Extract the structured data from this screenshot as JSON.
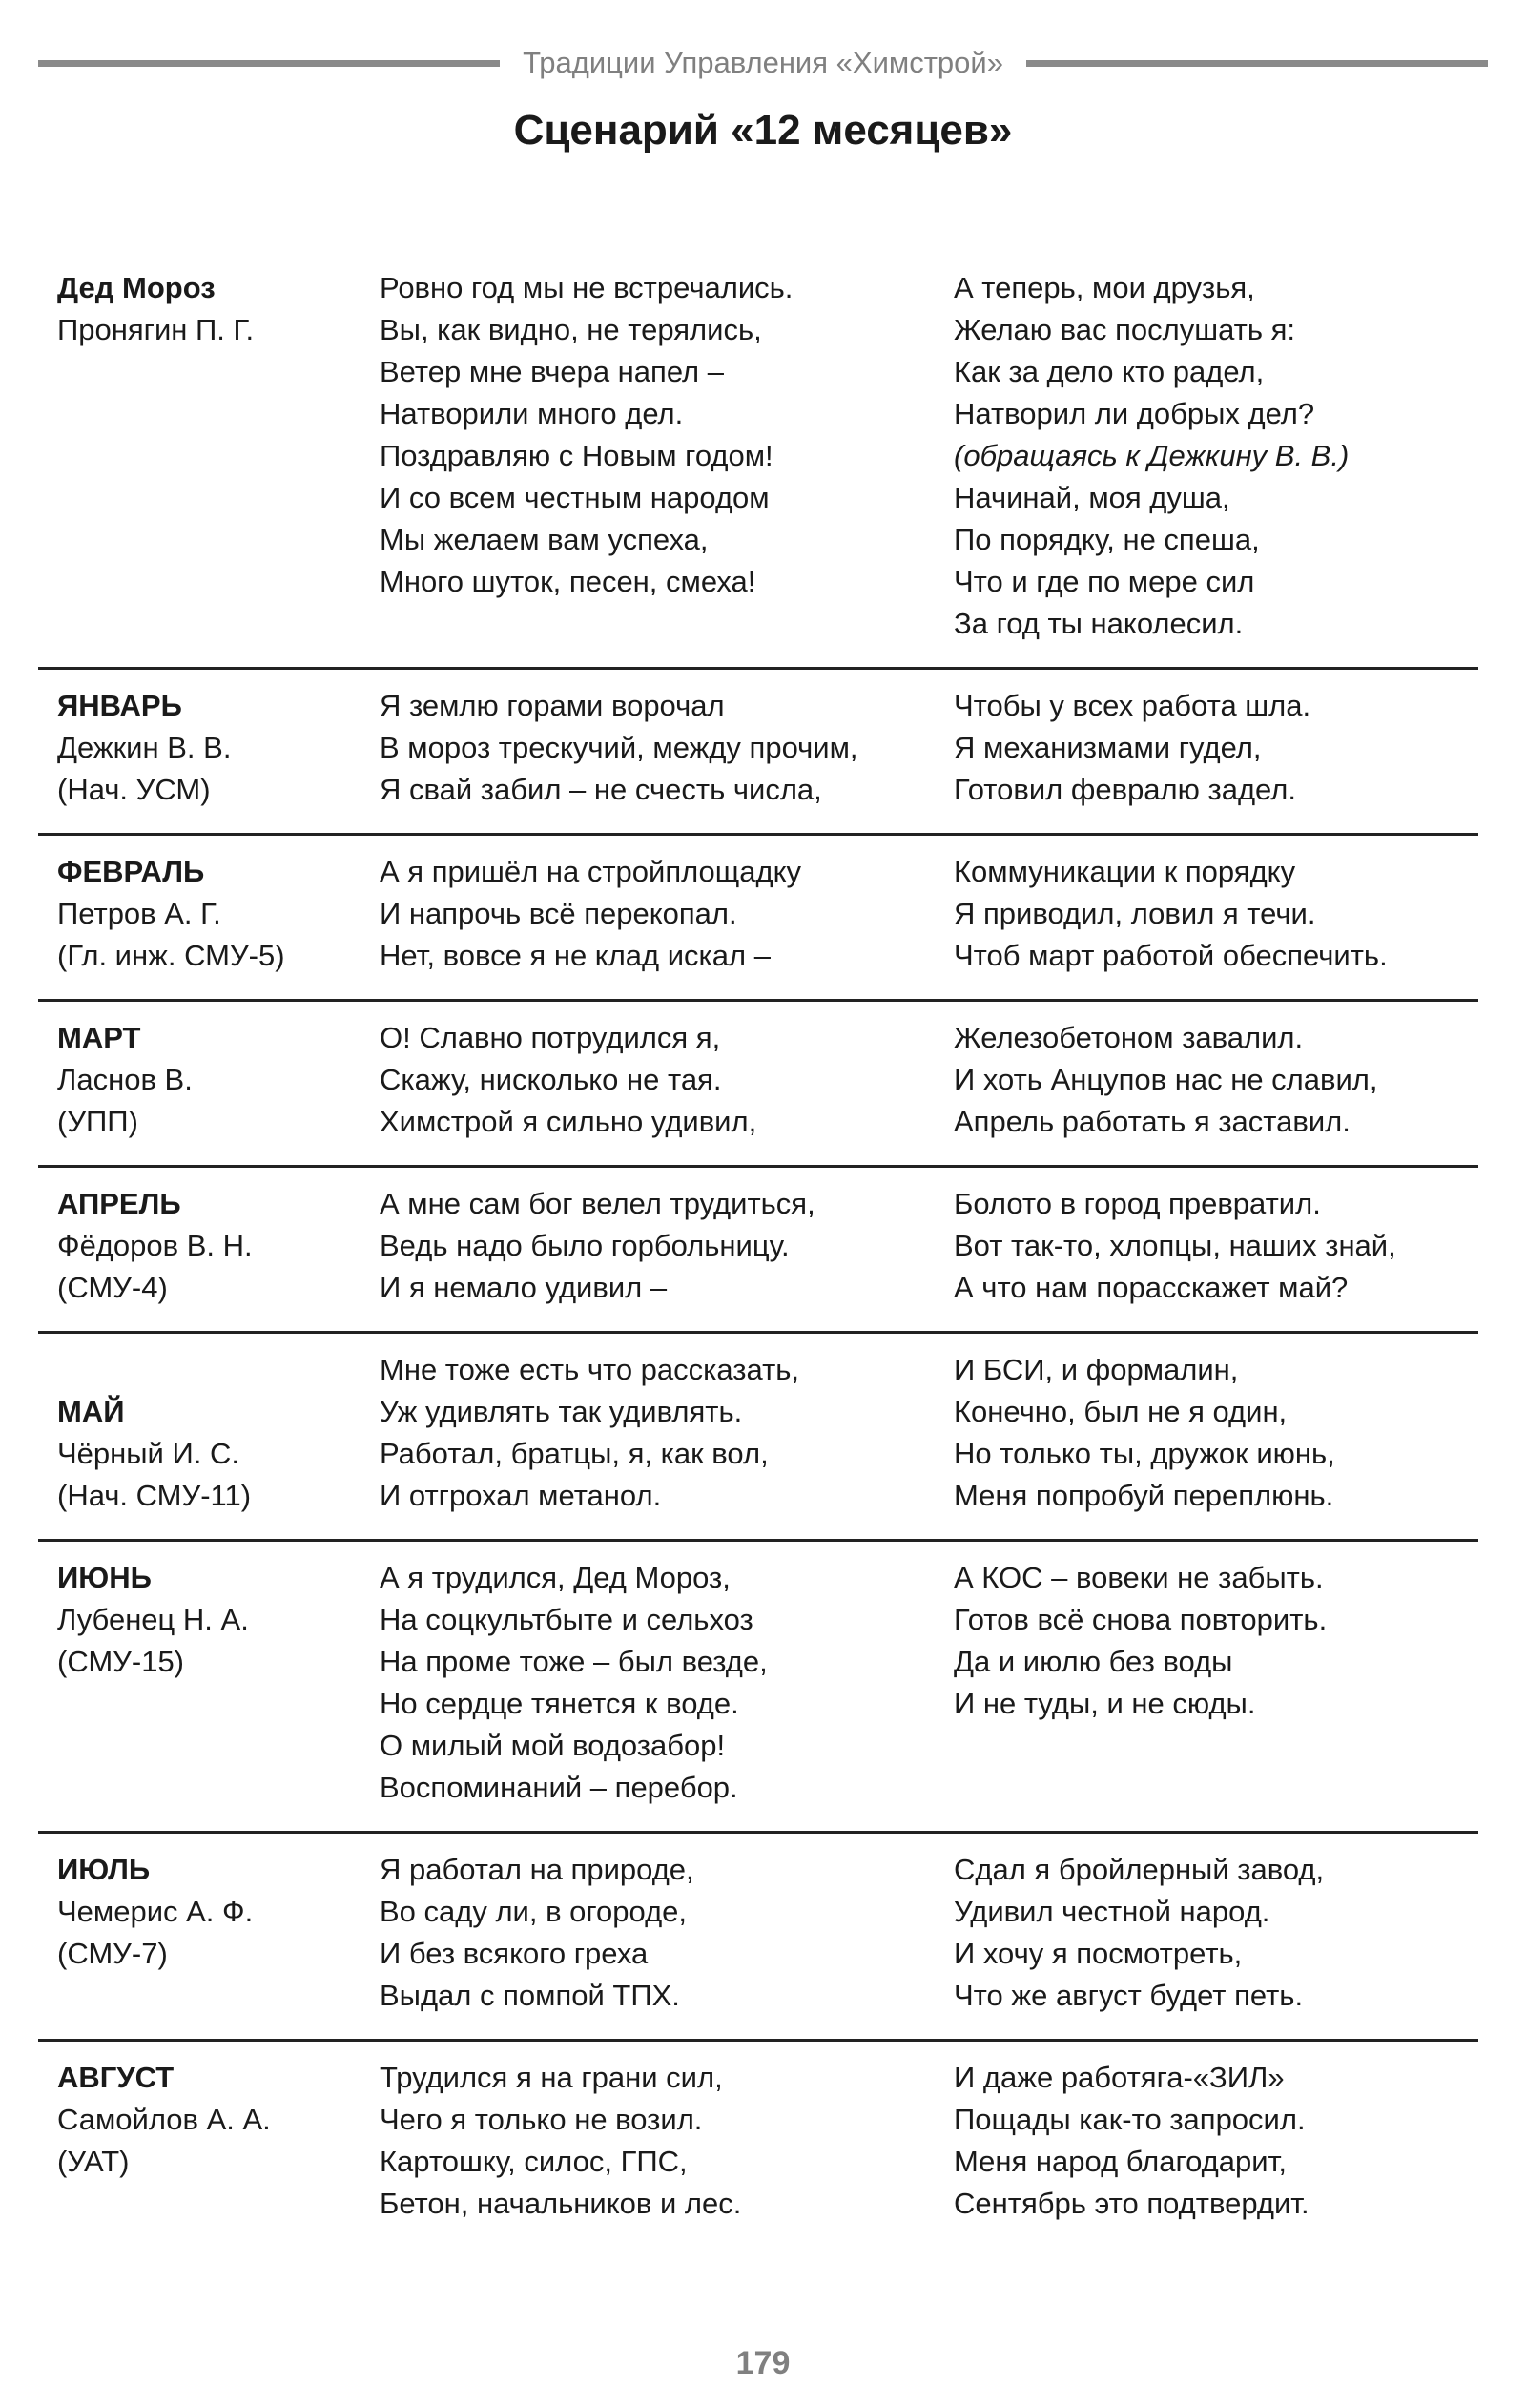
{
  "running_header": "Традиции Управления «Химстрой»",
  "title": "Сценарий «12 месяцев»",
  "rows": [
    {
      "name": [
        "Дед Мороз",
        "Пронягин П. Г."
      ],
      "col2": [
        "Ровно год мы не встречались.",
        "Вы, как видно, не терялись,",
        "Ветер мне вчера напел –",
        "Натворили много дел.",
        "Поздравляю с Новым годом!",
        "И со всем честным народом",
        "Мы желаем вам успеха,",
        "Много шуток, песен, смеха!"
      ],
      "col3": [
        "А теперь, мои друзья,",
        "Желаю вас послушать я:",
        "Как за дело кто радел,",
        "Натворил ли добрых дел?",
        "(обращаясь к Дежкину В. В.)",
        "Начинай, моя душа,",
        "По порядку, не спеша,",
        "Что и где по мере сил",
        "За год ты наколесил."
      ]
    },
    {
      "name": [
        "ЯНВАРЬ",
        "Дежкин В. В.",
        "(Нач. УСМ)"
      ],
      "col2": [
        "Я землю горами ворочал",
        "В мороз трескучий, между прочим,",
        "Я свай забил – не счесть числа,"
      ],
      "col3": [
        "Чтобы у всех работа шла.",
        "Я механизмами гудел,",
        "Готовил февралю задел."
      ]
    },
    {
      "name": [
        "ФЕВРАЛЬ",
        "Петров А. Г.",
        "(Гл. инж. СМУ-5)"
      ],
      "col2": [
        "А я пришёл на стройплощадку",
        "И напрочь всё перекопал.",
        "Нет, вовсе я не клад искал –"
      ],
      "col3": [
        "Коммуникации к порядку",
        "Я приводил, ловил я течи.",
        "Чтоб март работой обеспечить."
      ]
    },
    {
      "name": [
        "МАРТ",
        "Ласнов В.",
        "(УПП)"
      ],
      "col2": [
        "О! Славно потрудился я,",
        "Скажу, нисколько не тая.",
        "Химстрой я сильно удивил,"
      ],
      "col3": [
        "Железобетоном завалил.",
        "И хоть Анцупов нас не славил,",
        "Апрель работать я заставил."
      ]
    },
    {
      "name": [
        "АПРЕЛЬ",
        "Фёдоров В. Н.",
        "(СМУ-4)"
      ],
      "col2": [
        "А мне сам бог велел трудиться,",
        "Ведь надо было горбольницу.",
        "И я немало удивил –"
      ],
      "col3": [
        "Болото в город превратил.",
        "Вот так-то, хлопцы, наших знай,",
        "А что нам порасскажет май?"
      ]
    },
    {
      "name": [
        "",
        "МАЙ",
        "Чёрный И. С.",
        "(Нач. СМУ-11)"
      ],
      "col2": [
        "Мне тоже есть что рассказать,",
        "Уж удивлять так удивлять.",
        "Работал, братцы, я, как вол,",
        "И отгрохал метанол."
      ],
      "col3": [
        "И БСИ, и формалин,",
        "Конечно, был не я один,",
        "Но только ты, дружок июнь,",
        "Меня попробуй переплюнь."
      ]
    },
    {
      "name": [
        "ИЮНЬ",
        "Лубенец Н. А.",
        "(СМУ-15)"
      ],
      "col2": [
        "А я трудился, Дед Мороз,",
        "На соцкультбыте и сельхоз",
        "На проме тоже – был везде,",
        "Но сердце тянется к воде.",
        "О милый мой водозабор!",
        "Воспоминаний – перебор."
      ],
      "col3": [
        "А КОС – вовеки не забыть.",
        "Готов всё снова повторить.",
        "Да и июлю без воды",
        "И не туды, и не сюды."
      ]
    },
    {
      "name": [
        "ИЮЛЬ",
        "Чемерис А. Ф.",
        "(СМУ-7)"
      ],
      "col2": [
        "Я работал на природе,",
        "Во саду ли, в огороде,",
        "И без всякого греха",
        "Выдал с помпой ТПХ."
      ],
      "col3": [
        "Сдал я бройлерный завод,",
        "Удивил честной народ.",
        "И хочу я посмотреть,",
        "Что же август будет петь."
      ]
    },
    {
      "name": [
        "АВГУСТ",
        "Самойлов А. А.",
        "(УАТ)"
      ],
      "col2": [
        "Трудился я на грани сил,",
        "Чего я только не возил.",
        "Картошку, силос, ГПС,",
        "Бетон, начальников и лес."
      ],
      "col3": [
        "И даже работяга-«ЗИЛ»",
        "Пощады как-то запросил.",
        "Меня народ благодарит,",
        "Сентябрь это подтвердит."
      ]
    }
  ],
  "page_number": "179"
}
